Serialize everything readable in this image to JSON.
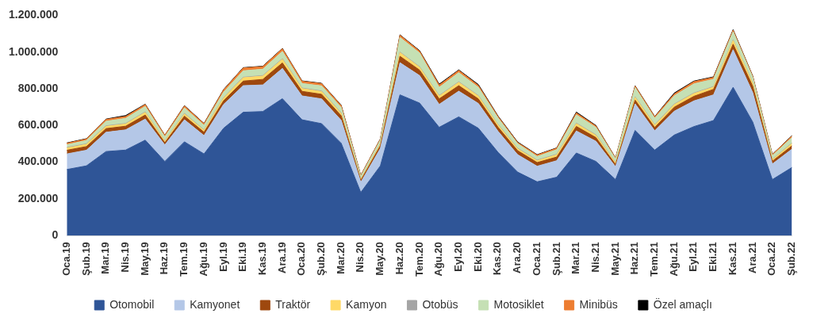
{
  "chart_data": {
    "type": "area",
    "stacked": true,
    "legend": "bottom",
    "grid": false,
    "marker": "none",
    "categories": [
      "Oca.19",
      "Şub.19",
      "Mar.19",
      "Nis.19",
      "May.19",
      "Haz.19",
      "Tem.19",
      "Ağu.19",
      "Eyl.19",
      "Eki.19",
      "Kas.19",
      "Ara.19",
      "Oca.20",
      "Şub.20",
      "Mar.20",
      "Nis.20",
      "May.20",
      "Haz.20",
      "Tem.20",
      "Ağu.20",
      "Eyl.20",
      "Eki.20",
      "Kas.20",
      "Ara.20",
      "Oca.21",
      "Şub.21",
      "Mar.21",
      "Nis.21",
      "May.21",
      "Haz.21",
      "Tem.21",
      "Ağu.21",
      "Eyl.21",
      "Eki.21",
      "Kas.21",
      "Ara.21",
      "Oca.22",
      "Şub.22"
    ],
    "ylim": [
      0,
      1200000
    ],
    "yticks": [
      {
        "value": 0,
        "label": "0"
      },
      {
        "value": 200000,
        "label": "200.000"
      },
      {
        "value": 400000,
        "label": "400.000"
      },
      {
        "value": 600000,
        "label": "600.000"
      },
      {
        "value": 800000,
        "label": "800.000"
      },
      {
        "value": 1000000,
        "label": "1.000.000"
      },
      {
        "value": 1200000,
        "label": "1.200.000"
      }
    ],
    "series": [
      {
        "name": "Otomobil",
        "color": "#2f5597",
        "values": [
          360000,
          380000,
          458000,
          466000,
          520000,
          404000,
          511000,
          445000,
          585000,
          672000,
          676000,
          746000,
          631000,
          610000,
          503000,
          235000,
          380000,
          767000,
          722000,
          590000,
          647000,
          585000,
          454000,
          346000,
          293000,
          318000,
          450000,
          404000,
          305000,
          573000,
          466000,
          548000,
          594000,
          627000,
          808000,
          619000,
          305000,
          371000
        ]
      },
      {
        "name": "Kamyonet",
        "color": "#b4c7e7",
        "values": [
          85000,
          85000,
          105000,
          110000,
          115000,
          90000,
          120000,
          100000,
          130000,
          145000,
          145000,
          165000,
          130000,
          135000,
          125000,
          55000,
          95000,
          175000,
          150000,
          125000,
          140000,
          135000,
          115000,
          95000,
          85000,
          90000,
          120000,
          110000,
          70000,
          145000,
          105000,
          130000,
          140000,
          140000,
          205000,
          160000,
          85000,
          100000
        ]
      },
      {
        "name": "Traktör",
        "color": "#9e480e",
        "values": [
          20000,
          20000,
          20000,
          20000,
          22000,
          12000,
          20000,
          18000,
          20000,
          25000,
          30000,
          30000,
          25000,
          25000,
          25000,
          10000,
          15000,
          35000,
          30000,
          30000,
          30000,
          25000,
          22000,
          22000,
          20000,
          20000,
          25000,
          20000,
          12000,
          20000,
          18000,
          22000,
          25000,
          30000,
          30000,
          35000,
          15000,
          18000
        ]
      },
      {
        "name": "Kamyon",
        "color": "#ffd966",
        "values": [
          12000,
          12000,
          12000,
          12000,
          14000,
          8000,
          12000,
          10000,
          14000,
          18000,
          18000,
          20000,
          15000,
          15000,
          12000,
          5000,
          8000,
          20000,
          15000,
          15000,
          18000,
          15000,
          12000,
          10000,
          10000,
          12000,
          15000,
          12000,
          8000,
          15000,
          12000,
          14000,
          15000,
          12000,
          20000,
          15000,
          8000,
          12000
        ]
      },
      {
        "name": "Otobüs",
        "color": "#a5a5a5",
        "values": [
          3000,
          3000,
          3000,
          3000,
          3000,
          2000,
          3000,
          3000,
          3000,
          3000,
          3000,
          3000,
          3000,
          3000,
          3000,
          2000,
          2000,
          3000,
          3000,
          3000,
          3000,
          3000,
          3000,
          3000,
          3000,
          3000,
          3000,
          3000,
          2000,
          3000,
          3000,
          3000,
          3000,
          3000,
          3000,
          3000,
          2000,
          3000
        ]
      },
      {
        "name": "Motosiklet",
        "color": "#c5e0b4",
        "values": [
          15000,
          18000,
          25000,
          28000,
          30000,
          22000,
          30000,
          25000,
          30000,
          35000,
          35000,
          40000,
          25000,
          28000,
          30000,
          15000,
          20000,
          80000,
          75000,
          45000,
          50000,
          45000,
          35000,
          25000,
          20000,
          25000,
          45000,
          40000,
          20000,
          50000,
          35000,
          45000,
          50000,
          40000,
          45000,
          30000,
          20000,
          30000
        ]
      },
      {
        "name": "Minibüs",
        "color": "#ed7d31",
        "values": [
          8000,
          8000,
          10000,
          10000,
          10000,
          8000,
          10000,
          8000,
          12000,
          15000,
          14000,
          14000,
          12000,
          12000,
          10000,
          5000,
          6000,
          12000,
          10000,
          12000,
          12000,
          10000,
          8000,
          6000,
          8000,
          8000,
          10000,
          8000,
          5000,
          8000,
          8000,
          10000,
          12000,
          10000,
          8000,
          6000,
          6000,
          8000
        ]
      },
      {
        "name": "Özel amaçlı",
        "color": "#000000",
        "values": [
          2000,
          2000,
          2000,
          5000,
          2000,
          1000,
          2000,
          2000,
          2000,
          2000,
          2000,
          2000,
          2000,
          2000,
          2000,
          1000,
          1000,
          2000,
          3000,
          5000,
          3000,
          5000,
          3000,
          3000,
          2000,
          2000,
          5000,
          3000,
          1000,
          2000,
          2000,
          5000,
          3000,
          3000,
          3000,
          2000,
          1000,
          2000
        ]
      }
    ]
  }
}
